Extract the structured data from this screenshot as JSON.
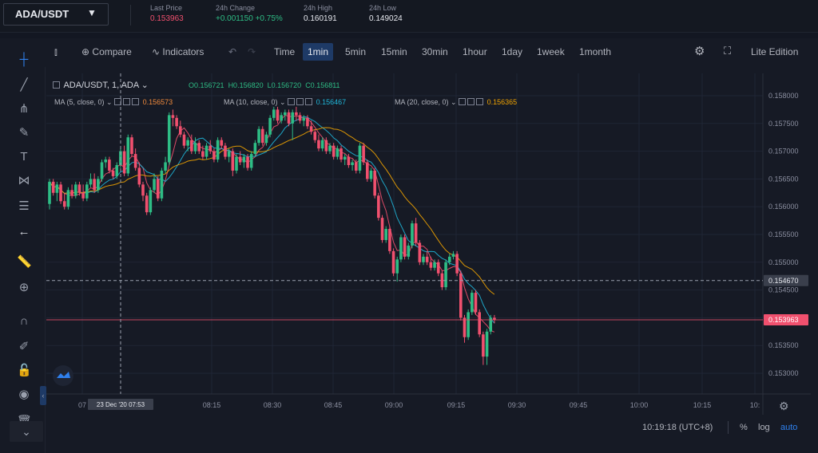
{
  "header": {
    "pair": "ADA/USDT",
    "stats": [
      {
        "label": "Last Price",
        "value": "0.153963",
        "color": "red"
      },
      {
        "label": "24h Change",
        "value": "+0.001150 +0.75%",
        "color": "green"
      },
      {
        "label": "24h High",
        "value": "0.160191",
        "color": "white"
      },
      {
        "label": "24h Low",
        "value": "0.149024",
        "color": "white"
      }
    ]
  },
  "toolbar": {
    "compare": "Compare",
    "indicators": "Indicators",
    "intervals": [
      "Time",
      "1min",
      "5min",
      "15min",
      "30min",
      "1hour",
      "1day",
      "1week",
      "1month"
    ],
    "active_interval": "1min",
    "lite": "Lite Edition"
  },
  "legend": {
    "symbol": "ADA/USDT, 1, ADA",
    "ohlc": {
      "open": "O0.156721",
      "high": "H0.156820",
      "low": "L0.156720",
      "close": "C0.156811"
    },
    "ma": [
      {
        "label": "MA (5, close, 0)",
        "value": "0.156573",
        "color": "#f0506e"
      },
      {
        "label": "MA (10, close, 0)",
        "value": "0.156467",
        "color": "#1fb5d8"
      },
      {
        "label": "MA (20, close, 0)",
        "value": "0.156365",
        "color": "#f0a300"
      }
    ]
  },
  "price_axis": [
    "0.158000",
    "0.157500",
    "0.157000",
    "0.156500",
    "0.156000",
    "0.155500",
    "0.155000",
    "0.154500",
    "0.154000",
    "0.153500",
    "0.153000"
  ],
  "time_axis": [
    "07",
    "08:15",
    "08:30",
    "08:45",
    "09:00",
    "09:15",
    "09:30",
    "09:45",
    "10:00",
    "10:15",
    "10:"
  ],
  "crosshair": {
    "time_label": "23 Dec '20  07:53",
    "price_label": "0.154670"
  },
  "last_price_label": "0.153963",
  "bottom": {
    "clock": "10:19:18 (UTC+8)",
    "percent": "%",
    "log": "log",
    "auto": "auto"
  },
  "colors": {
    "up": "#2ebd85",
    "down": "#f0506e",
    "ma5": "#f0506e",
    "ma10": "#1fb5d8",
    "ma20": "#f0a300",
    "active_tab": "#1e3a66"
  },
  "chart_data": {
    "type": "candlestick",
    "x_start": "07:56",
    "interval": "1min",
    "ylim": [
      0.1528,
      0.1583
    ],
    "candles": [
      [
        0.15605,
        0.1565,
        0.15595,
        0.15645
      ],
      [
        0.15645,
        0.1565,
        0.1562,
        0.15625
      ],
      [
        0.15625,
        0.15645,
        0.1561,
        0.1564
      ],
      [
        0.1564,
        0.15645,
        0.15605,
        0.1561
      ],
      [
        0.1561,
        0.15625,
        0.15595,
        0.156
      ],
      [
        0.156,
        0.15635,
        0.15595,
        0.1563
      ],
      [
        0.1563,
        0.1564,
        0.15615,
        0.1562
      ],
      [
        0.1562,
        0.15645,
        0.15615,
        0.1564
      ],
      [
        0.1564,
        0.15645,
        0.1562,
        0.15625
      ],
      [
        0.15625,
        0.1564,
        0.1561,
        0.15615
      ],
      [
        0.15615,
        0.15645,
        0.1561,
        0.1564
      ],
      [
        0.1564,
        0.1566,
        0.15635,
        0.1565
      ],
      [
        0.1565,
        0.1566,
        0.15625,
        0.1563
      ],
      [
        0.1563,
        0.15655,
        0.15625,
        0.1565
      ],
      [
        0.1565,
        0.15685,
        0.15645,
        0.1568
      ],
      [
        0.1568,
        0.1569,
        0.1567,
        0.15685
      ],
      [
        0.15685,
        0.1569,
        0.1566,
        0.15665
      ],
      [
        0.15665,
        0.1567,
        0.1565,
        0.15655
      ],
      [
        0.15655,
        0.1568,
        0.1565,
        0.15675
      ],
      [
        0.15675,
        0.15705,
        0.1567,
        0.157
      ],
      [
        0.157,
        0.1571,
        0.15655,
        0.1566
      ],
      [
        0.1566,
        0.1573,
        0.15655,
        0.15725
      ],
      [
        0.15725,
        0.1573,
        0.1569,
        0.15695
      ],
      [
        0.15695,
        0.15705,
        0.15665,
        0.1567
      ],
      [
        0.1567,
        0.1568,
        0.15635,
        0.1564
      ],
      [
        0.1564,
        0.15645,
        0.1561,
        0.1562
      ],
      [
        0.1562,
        0.15625,
        0.15585,
        0.1559
      ],
      [
        0.1559,
        0.15635,
        0.15585,
        0.1563
      ],
      [
        0.1563,
        0.1566,
        0.15625,
        0.1565
      ],
      [
        0.1565,
        0.15655,
        0.1561,
        0.15615
      ],
      [
        0.15615,
        0.1567,
        0.1561,
        0.15665
      ],
      [
        0.15665,
        0.1569,
        0.1566,
        0.1568
      ],
      [
        0.1568,
        0.1577,
        0.15675,
        0.15765
      ],
      [
        0.15765,
        0.15775,
        0.15745,
        0.1576
      ],
      [
        0.1576,
        0.15765,
        0.1574,
        0.15745
      ],
      [
        0.15745,
        0.15755,
        0.15725,
        0.1573
      ],
      [
        0.1573,
        0.15735,
        0.15705,
        0.1571
      ],
      [
        0.1571,
        0.15725,
        0.157,
        0.1572
      ],
      [
        0.1572,
        0.1573,
        0.15695,
        0.157
      ],
      [
        0.157,
        0.15725,
        0.15695,
        0.15715
      ],
      [
        0.15715,
        0.1572,
        0.15695,
        0.157
      ],
      [
        0.157,
        0.1571,
        0.15685,
        0.1569
      ],
      [
        0.1569,
        0.15715,
        0.15685,
        0.1571
      ],
      [
        0.1571,
        0.1572,
        0.15695,
        0.157
      ],
      [
        0.157,
        0.15705,
        0.1568,
        0.15685
      ],
      [
        0.15685,
        0.15725,
        0.1568,
        0.1572
      ],
      [
        0.1572,
        0.15725,
        0.15705,
        0.1571
      ],
      [
        0.1571,
        0.15715,
        0.15685,
        0.1569
      ],
      [
        0.1569,
        0.15705,
        0.1568,
        0.157
      ],
      [
        0.157,
        0.15705,
        0.15655,
        0.15665
      ],
      [
        0.15665,
        0.15695,
        0.1566,
        0.1569
      ],
      [
        0.1569,
        0.157,
        0.15675,
        0.1568
      ],
      [
        0.1568,
        0.15695,
        0.1567,
        0.1569
      ],
      [
        0.1569,
        0.15695,
        0.15665,
        0.1567
      ],
      [
        0.1567,
        0.157,
        0.15665,
        0.15695
      ],
      [
        0.15695,
        0.1572,
        0.1569,
        0.15715
      ],
      [
        0.15715,
        0.15745,
        0.1571,
        0.1574
      ],
      [
        0.1574,
        0.15745,
        0.1571,
        0.15715
      ],
      [
        0.15715,
        0.15735,
        0.1571,
        0.1573
      ],
      [
        0.1573,
        0.15765,
        0.15725,
        0.1576
      ],
      [
        0.1576,
        0.1578,
        0.15755,
        0.15775
      ],
      [
        0.15775,
        0.1578,
        0.1575,
        0.15755
      ],
      [
        0.15755,
        0.1577,
        0.1575,
        0.15765
      ],
      [
        0.15765,
        0.15775,
        0.15755,
        0.1577
      ],
      [
        0.1577,
        0.15775,
        0.15745,
        0.1575
      ],
      [
        0.1575,
        0.15775,
        0.1572,
        0.1577
      ],
      [
        0.1577,
        0.1578,
        0.15755,
        0.15765
      ],
      [
        0.15765,
        0.1577,
        0.1575,
        0.15755
      ],
      [
        0.15755,
        0.15765,
        0.15745,
        0.1576
      ],
      [
        0.1576,
        0.15765,
        0.1574,
        0.15745
      ],
      [
        0.15745,
        0.15755,
        0.1573,
        0.15735
      ],
      [
        0.15735,
        0.1574,
        0.15715,
        0.1572
      ],
      [
        0.1572,
        0.1573,
        0.157,
        0.15705
      ],
      [
        0.15705,
        0.15725,
        0.157,
        0.1572
      ],
      [
        0.1572,
        0.15725,
        0.15695,
        0.157
      ],
      [
        0.157,
        0.15715,
        0.15695,
        0.1571
      ],
      [
        0.1571,
        0.15715,
        0.15685,
        0.1569
      ],
      [
        0.1569,
        0.1571,
        0.15685,
        0.15705
      ],
      [
        0.15705,
        0.1571,
        0.1568,
        0.15685
      ],
      [
        0.15685,
        0.15695,
        0.15675,
        0.1569
      ],
      [
        0.1569,
        0.15695,
        0.1567,
        0.15675
      ],
      [
        0.15675,
        0.15685,
        0.15665,
        0.1568
      ],
      [
        0.1568,
        0.15685,
        0.1566,
        0.15665
      ],
      [
        0.15665,
        0.15715,
        0.1566,
        0.1571
      ],
      [
        0.1571,
        0.15715,
        0.15675,
        0.1568
      ],
      [
        0.1568,
        0.15685,
        0.15645,
        0.1565
      ],
      [
        0.1565,
        0.1567,
        0.15645,
        0.15665
      ],
      [
        0.15665,
        0.1567,
        0.15615,
        0.1562
      ],
      [
        0.1562,
        0.15625,
        0.15575,
        0.1558
      ],
      [
        0.1558,
        0.15585,
        0.15535,
        0.1554
      ],
      [
        0.1554,
        0.15565,
        0.15535,
        0.1556
      ],
      [
        0.1556,
        0.15565,
        0.15515,
        0.1552
      ],
      [
        0.1552,
        0.15525,
        0.15475,
        0.1548
      ],
      [
        0.1548,
        0.1551,
        0.15465,
        0.15505
      ],
      [
        0.15505,
        0.1555,
        0.155,
        0.15545
      ],
      [
        0.15545,
        0.1555,
        0.15505,
        0.1551
      ],
      [
        0.1551,
        0.15535,
        0.15505,
        0.1553
      ],
      [
        0.1553,
        0.15575,
        0.15525,
        0.1557
      ],
      [
        0.1557,
        0.1558,
        0.1553,
        0.15535
      ],
      [
        0.15535,
        0.1554,
        0.15495,
        0.155
      ],
      [
        0.155,
        0.15515,
        0.15495,
        0.1551
      ],
      [
        0.1551,
        0.1552,
        0.15495,
        0.155
      ],
      [
        0.155,
        0.1551,
        0.15485,
        0.1549
      ],
      [
        0.1549,
        0.15505,
        0.15485,
        0.155
      ],
      [
        0.155,
        0.15505,
        0.15475,
        0.1548
      ],
      [
        0.1548,
        0.15485,
        0.1545,
        0.15455
      ],
      [
        0.15455,
        0.15505,
        0.1545,
        0.155
      ],
      [
        0.155,
        0.15515,
        0.15495,
        0.1551
      ],
      [
        0.1551,
        0.1552,
        0.15505,
        0.15515
      ],
      [
        0.15515,
        0.1552,
        0.15475,
        0.1548
      ],
      [
        0.1548,
        0.15485,
        0.15395,
        0.154
      ],
      [
        0.154,
        0.15405,
        0.15355,
        0.15365
      ],
      [
        0.15365,
        0.15415,
        0.1536,
        0.1541
      ],
      [
        0.1541,
        0.1545,
        0.15405,
        0.15445
      ],
      [
        0.15445,
        0.1545,
        0.15405,
        0.1541
      ],
      [
        0.1541,
        0.15415,
        0.15365,
        0.1537
      ],
      [
        0.1537,
        0.15375,
        0.15315,
        0.1533
      ],
      [
        0.1533,
        0.1538,
        0.15315,
        0.15375
      ],
      [
        0.15375,
        0.15405,
        0.1537,
        0.154
      ],
      [
        0.154,
        0.15405,
        0.1539,
        0.153963
      ]
    ]
  }
}
